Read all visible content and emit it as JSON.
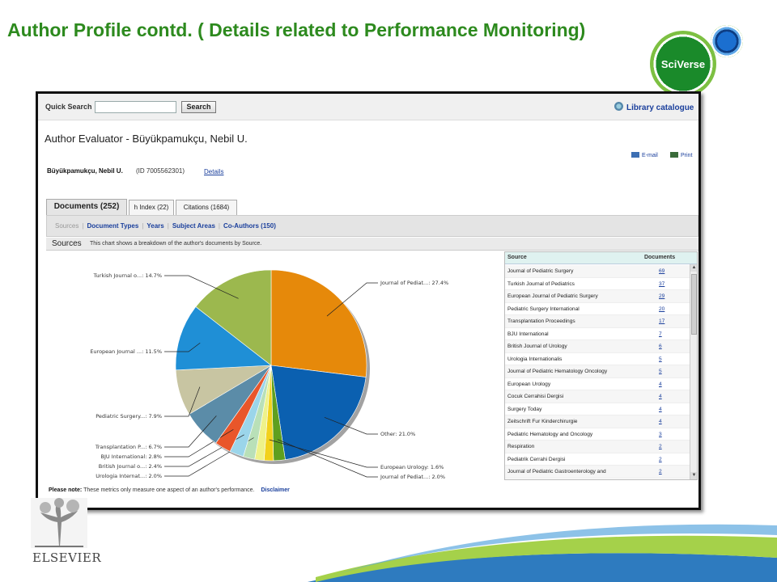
{
  "slide": {
    "title": "Author Profile contd. ( Details related to Performance Monitoring)",
    "sciverse_logo": "SciVerse",
    "publisher_logo": "ELSEVIER"
  },
  "search": {
    "label": "Quick Search",
    "value": "",
    "button": "Search",
    "library_link": "Library catalogue"
  },
  "page": {
    "title": "Author Evaluator - Büyükpamukçu, Nebil U.",
    "email": "E-mail",
    "print": "Print"
  },
  "author": {
    "name": "Büyükpamukçu, Nebil U.",
    "id_text": "(ID 7005562301)",
    "details": "Details"
  },
  "tabs": [
    {
      "label": "Documents (252)",
      "active": true
    },
    {
      "label": "h Index (22)",
      "active": false
    },
    {
      "label": "Citations (1684)",
      "active": false
    }
  ],
  "filters": [
    "Sources",
    "Document Types",
    "Years",
    "Subject Areas",
    "Co-Authors (150)"
  ],
  "sources_section": {
    "title": "Sources",
    "description": "This chart shows a breakdown of the author's documents by Source."
  },
  "chart_data": {
    "type": "pie",
    "title": "",
    "slices": [
      {
        "label": "Journal of Pediat...: 27.4%",
        "value": 27.4,
        "color": "#e6890a"
      },
      {
        "label": "Other: 21.0%",
        "value": 21.0,
        "color": "#0b60b0"
      },
      {
        "label": "Journal of Pediat...: 2.0%",
        "value": 2.0,
        "color": "#5f9f1f"
      },
      {
        "label": "European Urology: 1.6%",
        "value": 1.6,
        "color": "#f2d11c"
      },
      {
        "label": "",
        "value": 1.6,
        "color": "#eef28a"
      },
      {
        "label": "Urologia Internat...: 2.0%",
        "value": 2.0,
        "color": "#b9e0b8"
      },
      {
        "label": "British Journal o...: 2.4%",
        "value": 2.4,
        "color": "#9bd5ea"
      },
      {
        "label": "BJU International: 2.8%",
        "value": 2.8,
        "color": "#e9562a"
      },
      {
        "label": "Transplantation P...: 6.7%",
        "value": 6.7,
        "color": "#5b8ca8"
      },
      {
        "label": "Pediatric Surgery...: 7.9%",
        "value": 7.9,
        "color": "#c8c5a2"
      },
      {
        "label": "European Journal ...: 11.5%",
        "value": 11.5,
        "color": "#1f8fd6"
      },
      {
        "label": "Turkish Journal o...: 14.7%",
        "value": 14.7,
        "color": "#9cb84e"
      }
    ]
  },
  "table": {
    "headers": [
      "Source",
      "Documents"
    ],
    "rows": [
      {
        "source": "Journal of Pediatric Surgery",
        "documents": "69"
      },
      {
        "source": "Turkish Journal of Pediatrics",
        "documents": "37"
      },
      {
        "source": "European Journal of Pediatric Surgery",
        "documents": "29"
      },
      {
        "source": "Pediatric Surgery International",
        "documents": "20"
      },
      {
        "source": "Transplantation Proceedings",
        "documents": "17"
      },
      {
        "source": "BJU International",
        "documents": "7"
      },
      {
        "source": "British Journal of Urology",
        "documents": "6"
      },
      {
        "source": "Urologia Internationalis",
        "documents": "5"
      },
      {
        "source": "Journal of Pediatric Hematology Oncology",
        "documents": "5"
      },
      {
        "source": "European Urology",
        "documents": "4"
      },
      {
        "source": "Cocuk Cerrahisi Dergisi",
        "documents": "4"
      },
      {
        "source": "Surgery Today",
        "documents": "4"
      },
      {
        "source": "Zeitschrift Fur Kinderchirurgie",
        "documents": "4"
      },
      {
        "source": "Pediatric Hematology and Oncology",
        "documents": "3"
      },
      {
        "source": "Respiration",
        "documents": "2"
      },
      {
        "source": "Pediatrik Cerrahi Dergisi",
        "documents": "2"
      },
      {
        "source": "Journal of Pediatric Gastroenterology and",
        "documents": "2"
      }
    ]
  },
  "note": {
    "label": "Please note:",
    "text": "These metrics only measure one aspect of an author's performance.",
    "disclaimer": "Disclaimer"
  }
}
